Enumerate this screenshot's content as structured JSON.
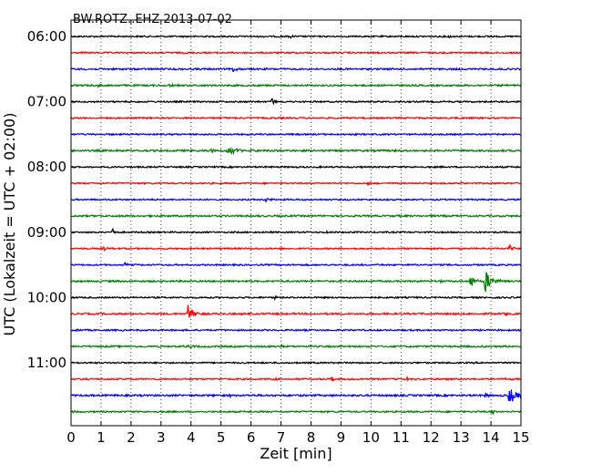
{
  "chart_data": {
    "type": "line",
    "title": "BW.ROTZ..EHZ 2013-07-02",
    "xlabel": "Zeit  [min]",
    "ylabel": "UTC (Lokalzeit = UTC + 02:00)",
    "xlim": [
      0,
      15
    ],
    "xticks": [
      "0",
      "1",
      "2",
      "3",
      "4",
      "5",
      "6",
      "7",
      "8",
      "9",
      "10",
      "11",
      "12",
      "13",
      "14",
      "15"
    ],
    "yticks": [
      "06:00",
      "07:00",
      "08:00",
      "09:00",
      "10:00",
      "11:00"
    ],
    "grid": {
      "x": true,
      "style": "dotted"
    },
    "colors": [
      "#000000",
      "#ff0000",
      "#0000ff",
      "#008000"
    ],
    "traces": [
      {
        "start": "06:00",
        "color": "#000000",
        "noise": 0.8,
        "events": [
          {
            "t": 7.3,
            "amp": 2.5,
            "dur": 0.15
          },
          {
            "t": 9.6,
            "amp": 1.5,
            "dur": 0.1
          },
          {
            "t": 12.6,
            "amp": 2.0,
            "dur": 0.15
          }
        ]
      },
      {
        "start": "06:15",
        "color": "#ff0000",
        "noise": 0.8,
        "events": []
      },
      {
        "start": "06:30",
        "color": "#0000ff",
        "noise": 0.9,
        "events": [
          {
            "t": 5.4,
            "amp": 3.0,
            "dur": 0.4
          }
        ]
      },
      {
        "start": "06:45",
        "color": "#008000",
        "noise": 0.9,
        "events": [
          {
            "t": 0.9,
            "amp": 1.5,
            "dur": 0.2
          },
          {
            "t": 3.3,
            "amp": 3.0,
            "dur": 0.3
          }
        ]
      },
      {
        "start": "07:00",
        "color": "#000000",
        "noise": 0.8,
        "events": [
          {
            "t": 6.7,
            "amp": 4.5,
            "dur": 0.25
          }
        ]
      },
      {
        "start": "07:15",
        "color": "#ff0000",
        "noise": 0.8,
        "events": []
      },
      {
        "start": "07:30",
        "color": "#0000ff",
        "noise": 0.8,
        "events": [
          {
            "t": 12.0,
            "amp": 2.5,
            "dur": 0.15
          }
        ]
      },
      {
        "start": "07:45",
        "color": "#008000",
        "noise": 1.0,
        "events": [
          {
            "t": 4.6,
            "amp": 4.0,
            "dur": 0.3
          },
          {
            "t": 5.2,
            "amp": 3.5,
            "dur": 1.3
          }
        ]
      },
      {
        "start": "08:00",
        "color": "#000000",
        "noise": 0.8,
        "events": []
      },
      {
        "start": "08:15",
        "color": "#ff0000",
        "noise": 0.8,
        "events": [
          {
            "t": 9.9,
            "amp": 2.0,
            "dur": 0.3
          },
          {
            "t": 13.0,
            "amp": 1.5,
            "dur": 0.2
          }
        ]
      },
      {
        "start": "08:30",
        "color": "#0000ff",
        "noise": 0.8,
        "events": [
          {
            "t": 6.5,
            "amp": 5.0,
            "dur": 0.25
          }
        ]
      },
      {
        "start": "08:45",
        "color": "#008000",
        "noise": 0.9,
        "events": [
          {
            "t": 1.6,
            "amp": 1.5,
            "dur": 0.2
          }
        ]
      },
      {
        "start": "09:00",
        "color": "#000000",
        "noise": 0.8,
        "events": [
          {
            "t": 1.4,
            "amp": 7.0,
            "dur": 0.2
          },
          {
            "t": 8.5,
            "amp": 2.5,
            "dur": 0.15
          }
        ]
      },
      {
        "start": "09:15",
        "color": "#ff0000",
        "noise": 0.8,
        "events": [
          {
            "t": 1.1,
            "amp": 4.0,
            "dur": 0.15
          },
          {
            "t": 14.6,
            "amp": 4.5,
            "dur": 0.5
          }
        ]
      },
      {
        "start": "09:30",
        "color": "#0000ff",
        "noise": 0.8,
        "events": [
          {
            "t": 1.8,
            "amp": 3.0,
            "dur": 0.2
          }
        ]
      },
      {
        "start": "09:45",
        "color": "#008000",
        "noise": 0.9,
        "events": [
          {
            "t": 12.3,
            "amp": 2.0,
            "dur": 0.2
          },
          {
            "t": 13.3,
            "amp": 12.0,
            "dur": 0.3
          },
          {
            "t": 13.8,
            "amp": 14.0,
            "dur": 0.6
          }
        ]
      },
      {
        "start": "10:00",
        "color": "#000000",
        "noise": 0.8,
        "events": [
          {
            "t": 6.8,
            "amp": 2.5,
            "dur": 0.15
          }
        ]
      },
      {
        "start": "10:15",
        "color": "#ff0000",
        "noise": 0.9,
        "events": [
          {
            "t": 3.9,
            "amp": 12.0,
            "dur": 0.5
          },
          {
            "t": 14.5,
            "amp": 2.0,
            "dur": 0.2
          }
        ]
      },
      {
        "start": "10:30",
        "color": "#0000ff",
        "noise": 0.8,
        "events": [
          {
            "t": 0.2,
            "amp": 1.5,
            "dur": 0.2
          }
        ]
      },
      {
        "start": "10:45",
        "color": "#008000",
        "noise": 0.9,
        "events": [
          {
            "t": 3.9,
            "amp": 2.0,
            "dur": 0.3
          },
          {
            "t": 7.0,
            "amp": 2.0,
            "dur": 0.3
          }
        ]
      },
      {
        "start": "11:00",
        "color": "#000000",
        "noise": 0.8,
        "events": []
      },
      {
        "start": "11:15",
        "color": "#ff0000",
        "noise": 0.8,
        "events": [
          {
            "t": 6.8,
            "amp": 2.5,
            "dur": 0.2
          },
          {
            "t": 8.7,
            "amp": 3.0,
            "dur": 0.15
          },
          {
            "t": 11.2,
            "amp": 3.0,
            "dur": 0.2
          },
          {
            "t": 14.5,
            "amp": 1.5,
            "dur": 0.2
          }
        ]
      },
      {
        "start": "11:30",
        "color": "#0000ff",
        "noise": 1.0,
        "events": [
          {
            "t": 5.3,
            "amp": 2.5,
            "dur": 0.3
          },
          {
            "t": 13.8,
            "amp": 3.0,
            "dur": 0.3
          },
          {
            "t": 14.6,
            "amp": 10.0,
            "dur": 0.7
          }
        ]
      },
      {
        "start": "11:45",
        "color": "#008000",
        "noise": 0.8,
        "events": [
          {
            "t": 0.1,
            "amp": 2.0,
            "dur": 0.2
          },
          {
            "t": 14.0,
            "amp": 3.5,
            "dur": 0.3
          }
        ]
      }
    ]
  }
}
